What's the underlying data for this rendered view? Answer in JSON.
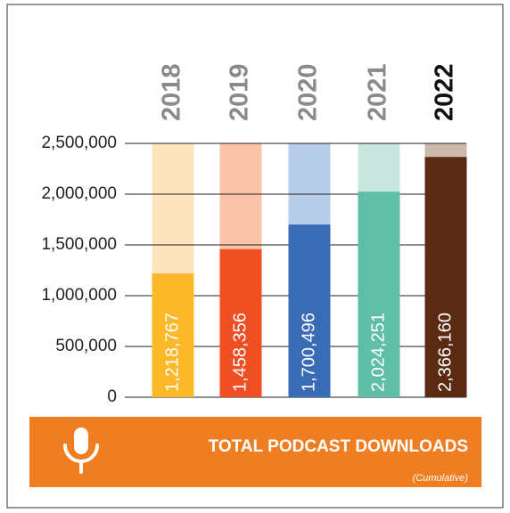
{
  "chart_data": {
    "type": "bar",
    "categories": [
      "2018",
      "2019",
      "2020",
      "2021",
      "2022"
    ],
    "series": [
      {
        "name": null,
        "values": [
          1218767,
          1458356,
          1700496,
          2024251,
          2366160
        ],
        "value_labels": [
          "1,218,767",
          "1,458,356",
          "1,700,496",
          "2,024,251",
          "2,366,160"
        ],
        "colors": [
          "#fbb829",
          "#f04e23",
          "#3a6bb5",
          "#5fbfa6",
          "#5a2a12"
        ],
        "light_colors": [
          "#fde6bd",
          "#f8c3a8",
          "#b7cde9",
          "#c9e6de",
          "#cbb9ae"
        ]
      }
    ],
    "ylim": [
      0,
      2500000
    ],
    "yticks": [
      0,
      {
        "value": 500000,
        "label": "500,000"
      },
      {
        "value": 1000000,
        "label": "1,000,000"
      },
      {
        "value": 1500000,
        "label": "1,500,000"
      },
      {
        "value": 2000000,
        "label": "2,000,000"
      },
      {
        "value": 2500000,
        "label": "2,500,000"
      }
    ],
    "grid": true,
    "banner": {
      "title": "TOTAL PODCAST DOWNLOADS",
      "subtitle": "(Cumulative)",
      "color": "#ef7d22"
    }
  }
}
